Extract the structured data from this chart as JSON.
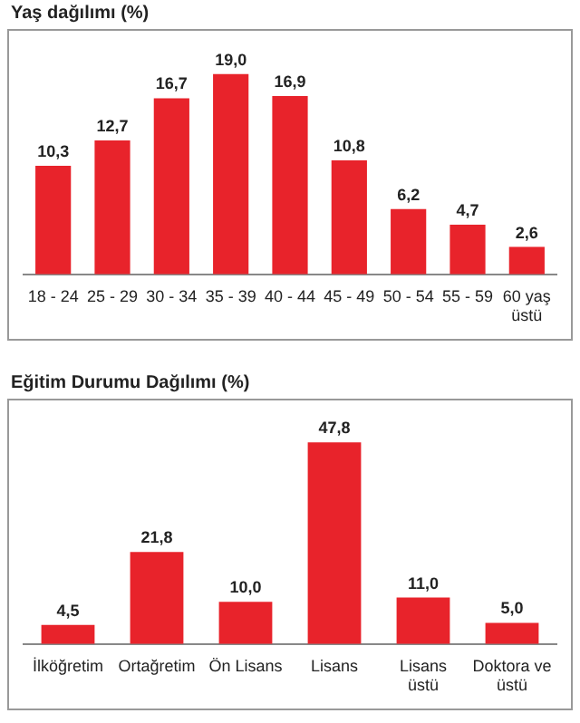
{
  "chart_data": [
    {
      "type": "bar",
      "title": "Yaş dağılımı (%)",
      "categories": [
        "18 - 24",
        "25 - 29",
        "30 - 34",
        "35 - 39",
        "40 - 44",
        "45 - 49",
        "50 - 54",
        "55 - 59",
        "60 yaş üstü"
      ],
      "values": [
        10.3,
        12.7,
        16.7,
        19.0,
        16.9,
        10.8,
        6.2,
        4.7,
        2.6
      ],
      "value_labels": [
        "10,3",
        "12,7",
        "16,7",
        "19,0",
        "16,9",
        "10,8",
        "6,2",
        "4,7",
        "2,6"
      ],
      "color": "#e8232b",
      "grid": false,
      "tick_labels": "x"
    },
    {
      "type": "bar",
      "title": "Eğitim Durumu Dağılımı (%)",
      "categories": [
        "İlköğretim",
        "Ortağretim",
        "Ön Lisans",
        "Lisans",
        "Lisans üstü",
        "Doktora ve üstü"
      ],
      "values": [
        4.5,
        21.8,
        10.0,
        47.8,
        11.0,
        5.0
      ],
      "value_labels": [
        "4,5",
        "21,8",
        "10,0",
        "47,8",
        "11,0",
        "5,0"
      ],
      "color": "#e8232b",
      "grid": false,
      "tick_labels": "x"
    }
  ]
}
